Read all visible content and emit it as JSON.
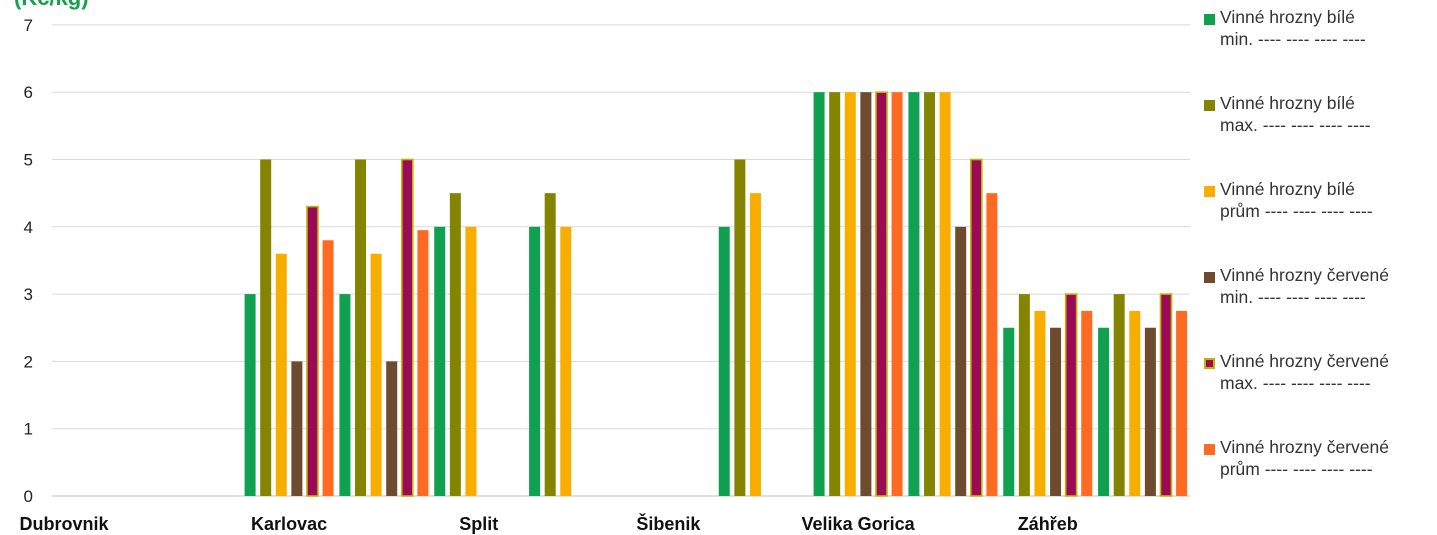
{
  "chart_data": {
    "type": "bar",
    "unit_label": "(Kč/kg)",
    "ylim": [
      0,
      7
    ],
    "yticks": [
      "0",
      "1",
      "2",
      "3",
      "4",
      "5",
      "6",
      "7"
    ],
    "grid": true,
    "legend_position": "right",
    "category_labels": [
      "Dubrovnik",
      "Karlovac",
      "Split",
      "Šibenik",
      "Velika Gorica",
      "Záhřeb"
    ],
    "groups": 12,
    "series": [
      {
        "name": "Vinné hrozny bílé min. ---- ---- ---- ----",
        "color": "#0FA050",
        "outline": "",
        "values": [
          0,
          0,
          3,
          3,
          4,
          4,
          0,
          4,
          6,
          6,
          2.5,
          2.5
        ]
      },
      {
        "name": "Vinné hrozny bílé max. ---- ---- ---- ----",
        "color": "#848400",
        "outline": "",
        "values": [
          0,
          0,
          5,
          5,
          4.5,
          4.5,
          0,
          5,
          6,
          6,
          3,
          3
        ]
      },
      {
        "name": "Vinné hrozny bílé prům ---- ---- ---- ----",
        "color": "#F7AE00",
        "outline": "",
        "values": [
          0,
          0,
          3.6,
          3.6,
          4,
          4,
          0,
          4.5,
          6,
          6,
          2.75,
          2.75
        ]
      },
      {
        "name": "Vinné hrozny červené min. ---- ---- ---- ----",
        "color": "#6E4A2E",
        "outline": "",
        "values": [
          0,
          0,
          2,
          2,
          0,
          0,
          0,
          0,
          6,
          4,
          2.5,
          2.5
        ]
      },
      {
        "name": "Vinné hrozny červené max. ---- ---- ---- ----",
        "color": "#9B0A59",
        "outline": "#C3B400",
        "values": [
          0,
          0,
          4.3,
          5,
          0,
          0,
          0,
          0,
          6,
          5,
          3,
          3
        ]
      },
      {
        "name": "Vinné hrozny červené prům ---- ---- ---- ----",
        "color": "#FF6A22",
        "outline": "",
        "values": [
          0,
          0,
          3.8,
          3.95,
          0,
          0,
          0,
          0,
          6,
          4.5,
          2.75,
          2.75
        ]
      }
    ],
    "unit_color": "#14A04C"
  }
}
